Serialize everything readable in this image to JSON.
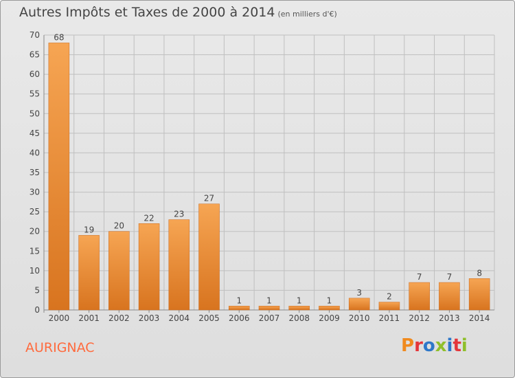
{
  "header": {
    "title": "Autres Impôts et Taxes de 2000 à 2014",
    "subtitle": "(en milliers d'€)"
  },
  "footer": {
    "commune": "AURIGNAC",
    "logo_text": "Proxiti"
  },
  "colors": {
    "bar_light": "#f6a553",
    "bar_dark": "#d8741f",
    "grid": "#bfbfbf",
    "text": "#444444",
    "commune": "#ff6a3d",
    "logo": [
      "#f08a1e",
      "#e4363a",
      "#2e77c9",
      "#8fbf2b",
      "#2e77c9",
      "#e4363a",
      "#8fbf2b"
    ]
  },
  "chart_data": {
    "type": "bar",
    "title": "Autres Impôts et Taxes de 2000 à 2014",
    "subtitle": "(en milliers d'€)",
    "categories": [
      "2000",
      "2001",
      "2002",
      "2003",
      "2004",
      "2005",
      "2006",
      "2007",
      "2008",
      "2009",
      "2010",
      "2011",
      "2012",
      "2013",
      "2014"
    ],
    "values": [
      68,
      19,
      20,
      22,
      23,
      27,
      1,
      1,
      1,
      1,
      3,
      2,
      7,
      7,
      8
    ],
    "ylim": [
      0,
      70
    ],
    "yticks": [
      0,
      5,
      10,
      15,
      20,
      25,
      30,
      35,
      40,
      45,
      50,
      55,
      60,
      65,
      70
    ],
    "grid": true,
    "data_labels": true
  }
}
